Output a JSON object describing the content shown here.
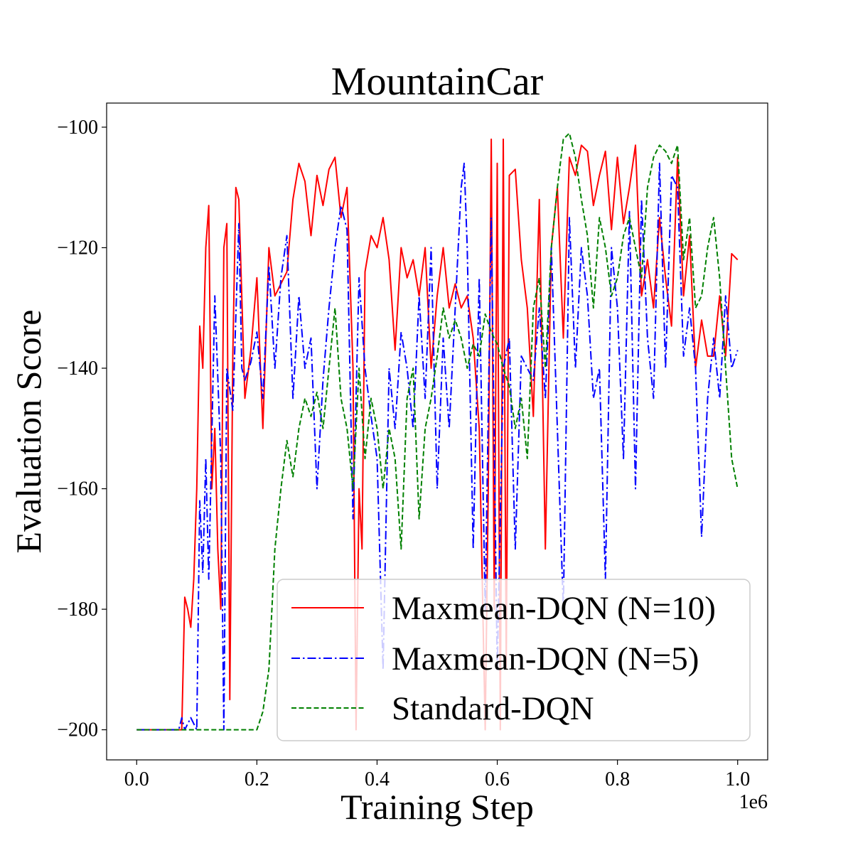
{
  "chart_data": {
    "type": "line",
    "title": "MountainCar",
    "xlabel": "Training Step",
    "ylabel": "Evaluation Score",
    "x_offset_label": "1e6",
    "xlim": [
      -0.05,
      1.05
    ],
    "ylim": [
      -205,
      -96
    ],
    "xticks": [
      0.0,
      0.2,
      0.4,
      0.6,
      0.8,
      1.0
    ],
    "xtick_labels": [
      "0.0",
      "0.2",
      "0.4",
      "0.6",
      "0.8",
      "1.0"
    ],
    "yticks": [
      -200,
      -180,
      -160,
      -140,
      -120,
      -100
    ],
    "ytick_labels": [
      "−200",
      "−180",
      "−160",
      "−140",
      "−120",
      "−100"
    ],
    "legend_position": "lower-right",
    "series": [
      {
        "name": "Maxmean-DQN (N=10)",
        "color": "#ff0000",
        "style": "solid",
        "x": [
          0.0,
          0.075,
          0.08,
          0.085,
          0.09,
          0.095,
          0.1,
          0.105,
          0.11,
          0.115,
          0.12,
          0.125,
          0.13,
          0.135,
          0.14,
          0.145,
          0.15,
          0.155,
          0.16,
          0.165,
          0.17,
          0.18,
          0.19,
          0.2,
          0.21,
          0.22,
          0.23,
          0.24,
          0.25,
          0.26,
          0.27,
          0.28,
          0.29,
          0.3,
          0.31,
          0.32,
          0.33,
          0.34,
          0.35,
          0.36,
          0.365,
          0.37,
          0.375,
          0.38,
          0.39,
          0.4,
          0.41,
          0.42,
          0.43,
          0.44,
          0.45,
          0.46,
          0.47,
          0.48,
          0.49,
          0.5,
          0.51,
          0.52,
          0.53,
          0.54,
          0.55,
          0.56,
          0.57,
          0.58,
          0.585,
          0.59,
          0.595,
          0.6,
          0.605,
          0.61,
          0.615,
          0.62,
          0.63,
          0.64,
          0.65,
          0.66,
          0.67,
          0.68,
          0.69,
          0.7,
          0.71,
          0.72,
          0.73,
          0.74,
          0.75,
          0.76,
          0.77,
          0.78,
          0.79,
          0.8,
          0.81,
          0.82,
          0.83,
          0.84,
          0.85,
          0.86,
          0.87,
          0.88,
          0.89,
          0.9,
          0.91,
          0.92,
          0.93,
          0.94,
          0.95,
          0.96,
          0.97,
          0.98,
          0.99,
          1.0
        ],
        "y": [
          -200,
          -200,
          -178,
          -180,
          -183,
          -175,
          -160,
          -133,
          -140,
          -120,
          -113,
          -160,
          -150,
          -170,
          -180,
          -120,
          -116,
          -195,
          -138,
          -110,
          -112,
          -145,
          -137,
          -125,
          -150,
          -120,
          -128,
          -126,
          -124,
          -112,
          -106,
          -109,
          -118,
          -108,
          -113,
          -107,
          -105,
          -115,
          -110,
          -140,
          -200,
          -160,
          -170,
          -124,
          -118,
          -120,
          -115,
          -122,
          -137,
          -120,
          -125,
          -122,
          -128,
          -120,
          -140,
          -128,
          -120,
          -130,
          -126,
          -130,
          -128,
          -135,
          -150,
          -200,
          -160,
          -102,
          -180,
          -106,
          -200,
          -102,
          -190,
          -108,
          -107,
          -122,
          -130,
          -148,
          -112,
          -170,
          -120,
          -110,
          -135,
          -105,
          -108,
          -103,
          -104,
          -113,
          -108,
          -104,
          -117,
          -105,
          -116,
          -110,
          -103,
          -128,
          -122,
          -130,
          -115,
          -125,
          -133,
          -105,
          -128,
          -118,
          -140,
          -132,
          -138,
          -138,
          -128,
          -138,
          -121,
          -122
        ]
      },
      {
        "name": "Maxmean-DQN (N=5)",
        "color": "#0000ff",
        "style": "dashdot",
        "x": [
          0.0,
          0.07,
          0.075,
          0.08,
          0.09,
          0.1,
          0.105,
          0.11,
          0.115,
          0.12,
          0.13,
          0.14,
          0.145,
          0.15,
          0.16,
          0.17,
          0.175,
          0.18,
          0.19,
          0.2,
          0.21,
          0.22,
          0.23,
          0.24,
          0.25,
          0.26,
          0.27,
          0.28,
          0.29,
          0.3,
          0.31,
          0.32,
          0.33,
          0.34,
          0.35,
          0.36,
          0.37,
          0.38,
          0.39,
          0.4,
          0.41,
          0.42,
          0.43,
          0.44,
          0.45,
          0.46,
          0.47,
          0.48,
          0.49,
          0.5,
          0.51,
          0.52,
          0.53,
          0.54,
          0.545,
          0.55,
          0.56,
          0.57,
          0.58,
          0.59,
          0.6,
          0.61,
          0.62,
          0.63,
          0.64,
          0.65,
          0.66,
          0.67,
          0.68,
          0.69,
          0.7,
          0.71,
          0.72,
          0.73,
          0.74,
          0.75,
          0.76,
          0.77,
          0.78,
          0.79,
          0.8,
          0.81,
          0.82,
          0.83,
          0.84,
          0.85,
          0.86,
          0.87,
          0.88,
          0.89,
          0.9,
          0.91,
          0.92,
          0.93,
          0.94,
          0.95,
          0.96,
          0.97,
          0.98,
          0.99,
          1.0
        ],
        "y": [
          -200,
          -200,
          -198,
          -200,
          -198,
          -200,
          -162,
          -174,
          -155,
          -175,
          -128,
          -155,
          -200,
          -140,
          -147,
          -116,
          -140,
          -142,
          -139,
          -134,
          -145,
          -123,
          -140,
          -125,
          -118,
          -145,
          -128,
          -140,
          -135,
          -160,
          -142,
          -130,
          -120,
          -113,
          -117,
          -165,
          -125,
          -140,
          -148,
          -155,
          -190,
          -140,
          -150,
          -134,
          -140,
          -150,
          -128,
          -145,
          -120,
          -160,
          -135,
          -150,
          -130,
          -110,
          -106,
          -120,
          -170,
          -125,
          -180,
          -115,
          -190,
          -140,
          -135,
          -170,
          -138,
          -140,
          -142,
          -130,
          -145,
          -120,
          -150,
          -180,
          -115,
          -140,
          -120,
          -128,
          -145,
          -140,
          -175,
          -120,
          -130,
          -155,
          -114,
          -160,
          -112,
          -135,
          -145,
          -106,
          -140,
          -108,
          -110,
          -138,
          -130,
          -140,
          -168,
          -145,
          -135,
          -145,
          -128,
          -140,
          -137
        ]
      },
      {
        "name": "Standard-DQN",
        "color": "#008000",
        "style": "dashed",
        "x": [
          0.0,
          0.1,
          0.2,
          0.21,
          0.22,
          0.23,
          0.24,
          0.25,
          0.26,
          0.27,
          0.28,
          0.29,
          0.3,
          0.31,
          0.32,
          0.33,
          0.34,
          0.35,
          0.36,
          0.37,
          0.38,
          0.39,
          0.4,
          0.41,
          0.42,
          0.43,
          0.44,
          0.45,
          0.46,
          0.47,
          0.48,
          0.49,
          0.5,
          0.51,
          0.52,
          0.53,
          0.54,
          0.55,
          0.56,
          0.57,
          0.58,
          0.59,
          0.6,
          0.61,
          0.62,
          0.63,
          0.64,
          0.65,
          0.66,
          0.67,
          0.68,
          0.69,
          0.7,
          0.71,
          0.72,
          0.73,
          0.74,
          0.75,
          0.76,
          0.77,
          0.78,
          0.79,
          0.8,
          0.81,
          0.82,
          0.83,
          0.84,
          0.85,
          0.86,
          0.87,
          0.88,
          0.89,
          0.9,
          0.91,
          0.92,
          0.93,
          0.94,
          0.95,
          0.96,
          0.97,
          0.98,
          0.99,
          1.0
        ],
        "y": [
          -200,
          -200,
          -200,
          -197,
          -190,
          -170,
          -160,
          -152,
          -158,
          -150,
          -145,
          -148,
          -144,
          -150,
          -140,
          -130,
          -145,
          -150,
          -160,
          -140,
          -155,
          -145,
          -150,
          -160,
          -150,
          -155,
          -170,
          -145,
          -140,
          -165,
          -150,
          -145,
          -138,
          -130,
          -135,
          -132,
          -135,
          -140,
          -136,
          -138,
          -131,
          -134,
          -136,
          -140,
          -143,
          -150,
          -145,
          -155,
          -130,
          -125,
          -140,
          -120,
          -110,
          -102,
          -101,
          -105,
          -112,
          -118,
          -130,
          -115,
          -120,
          -128,
          -125,
          -118,
          -115,
          -120,
          -125,
          -110,
          -105,
          -103,
          -104,
          -106,
          -103,
          -122,
          -115,
          -130,
          -128,
          -120,
          -115,
          -125,
          -140,
          -155,
          -160
        ]
      }
    ]
  }
}
